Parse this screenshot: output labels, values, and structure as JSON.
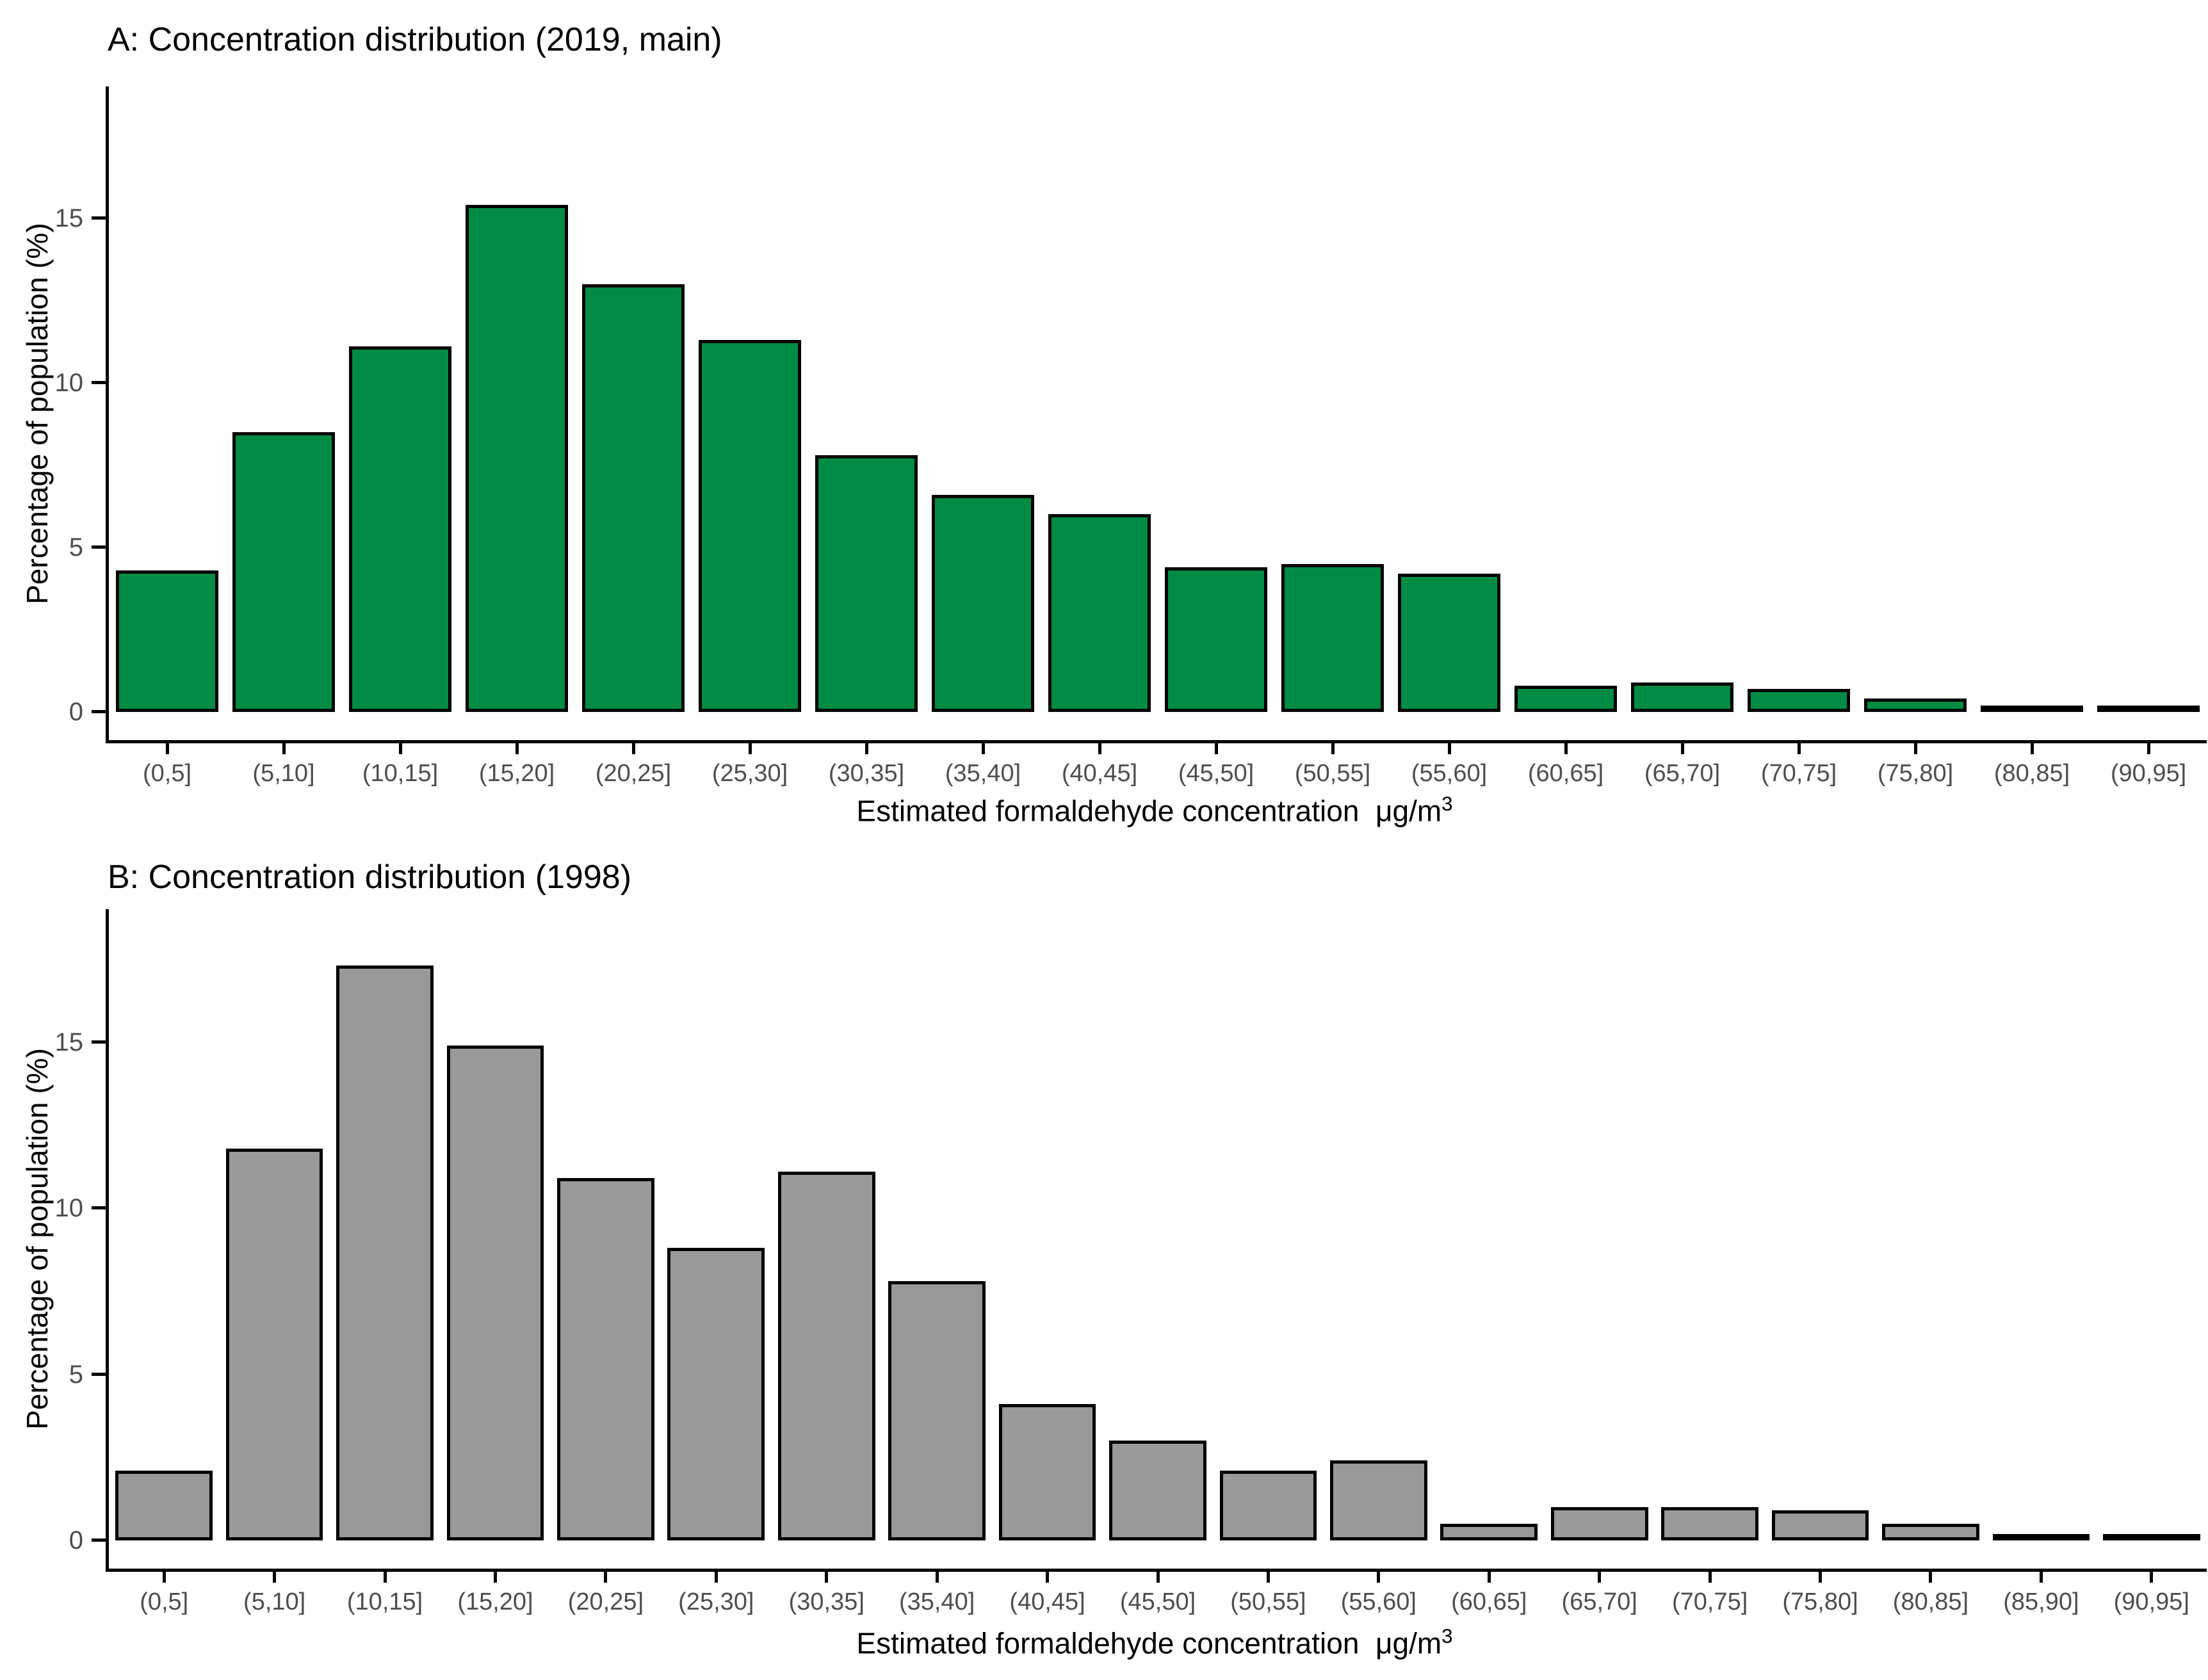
{
  "page": {
    "background": "#ffffff"
  },
  "chart_data": [
    {
      "type": "bar",
      "title": "A: Concentration distribution (2019, main)",
      "ylabel": "Percentage of population (%)",
      "xlabel": "Estimated formaldehyde concentration",
      "xlabel_unit": "μg/m",
      "xlabel_sup": "3",
      "bar_color": "#008B45",
      "bar_border_color": "#000000",
      "tick_label_color": "#4d4d4d",
      "grid": false,
      "ylim": [
        0,
        19
      ],
      "yticks": [
        0,
        5,
        10,
        15
      ],
      "categories": [
        "(0,5]",
        "(5,10]",
        "(10,15]",
        "(15,20]",
        "(20,25]",
        "(25,30]",
        "(30,35]",
        "(35,40]",
        "(40,45]",
        "(45,50]",
        "(50,55]",
        "(55,60]",
        "(60,65]",
        "(65,70]",
        "(70,75]",
        "(75,80]",
        "(80,85]",
        "(90,95]"
      ],
      "values": [
        4.3,
        8.5,
        11.1,
        15.4,
        13.0,
        11.3,
        7.8,
        6.6,
        6.0,
        4.4,
        4.5,
        4.2,
        0.8,
        0.9,
        0.7,
        0.4,
        0.2,
        0.1
      ]
    },
    {
      "type": "bar",
      "title": "B: Concentration distribution (1998)",
      "ylabel": "Percentage of population (%)",
      "xlabel": "Estimated formaldehyde concentration",
      "xlabel_unit": "μg/m",
      "xlabel_sup": "3",
      "bar_color": "#999999",
      "bar_border_color": "#000000",
      "tick_label_color": "#4d4d4d",
      "grid": false,
      "ylim": [
        0,
        19
      ],
      "yticks": [
        0,
        5,
        10,
        15
      ],
      "categories": [
        "(0,5]",
        "(5,10]",
        "(10,15]",
        "(15,20]",
        "(20,25]",
        "(25,30]",
        "(30,35]",
        "(35,40]",
        "(40,45]",
        "(45,50]",
        "(50,55]",
        "(55,60]",
        "(60,65]",
        "(65,70]",
        "(70,75]",
        "(75,80]",
        "(80,85]",
        "(85,90]",
        "(90,95]"
      ],
      "values": [
        2.1,
        11.8,
        17.3,
        14.9,
        10.9,
        8.8,
        11.1,
        7.8,
        4.1,
        3.0,
        2.1,
        2.4,
        0.5,
        1.0,
        1.0,
        0.9,
        0.5,
        0.2,
        0.2
      ]
    }
  ]
}
